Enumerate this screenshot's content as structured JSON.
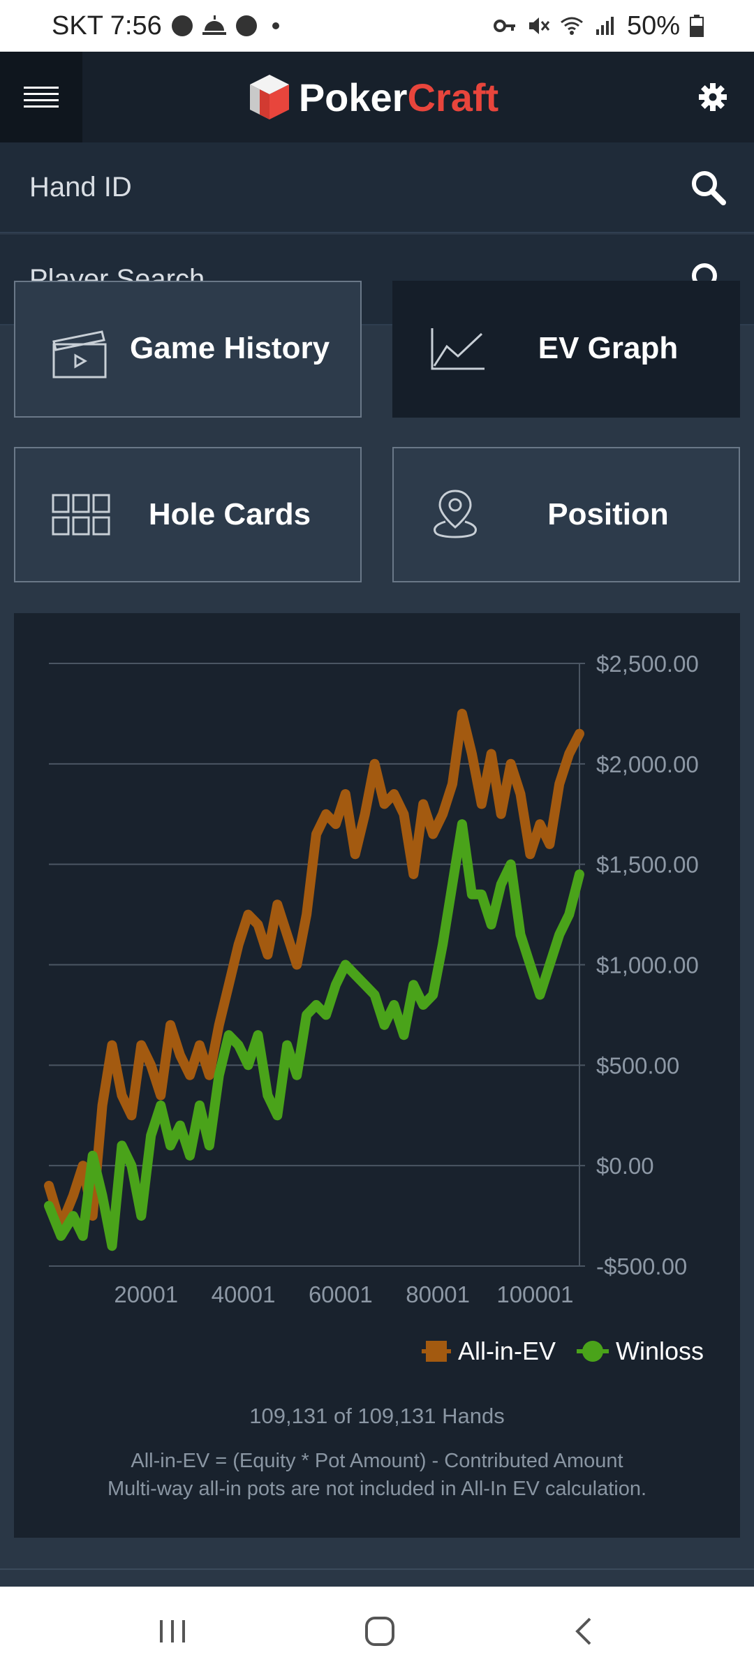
{
  "status_bar": {
    "carrier_time": "SKT 7:56",
    "battery": "50%",
    "icons": [
      "basketball-icon",
      "sunrise-icon",
      "basketball-icon",
      "dot-icon",
      "key-icon",
      "mute-icon",
      "wifi-icon",
      "signal-icon",
      "battery-icon"
    ]
  },
  "header": {
    "logo_poker": "Poker",
    "logo_craft": "Craft",
    "menu_icon": "hamburger-icon",
    "settings_icon": "gear-icon"
  },
  "search": {
    "hand_id_label": "Hand ID",
    "player_search_label": "Player Search"
  },
  "tiles": [
    {
      "label": "Game History",
      "icon": "clapperboard-icon",
      "active": false
    },
    {
      "label": "EV Graph",
      "icon": "line-graph-icon",
      "active": true
    },
    {
      "label": "Hole Cards",
      "icon": "grid-icon",
      "active": false
    },
    {
      "label": "Position",
      "icon": "location-pin-icon",
      "active": false
    }
  ],
  "colors": {
    "all_in_ev": "#a35a10",
    "winloss": "#4aa31a",
    "accent_red": "#e8453c"
  },
  "chart_data": {
    "type": "line",
    "x_ticks": [
      20001,
      40001,
      60001,
      80001,
      100001
    ],
    "x_tick_labels": [
      "20001",
      "40001",
      "60001",
      "80001",
      "100001"
    ],
    "y_ticks": [
      -500,
      0,
      500,
      1000,
      1500,
      2000,
      2500
    ],
    "y_tick_labels": [
      "-$500.00",
      "$0.00",
      "$500.00",
      "$1,000.00",
      "$1,500.00",
      "$2,000.00",
      "$2,500.00"
    ],
    "xlim": [
      1,
      109131
    ],
    "ylim": [
      -500,
      2500
    ],
    "grid": true,
    "legend_position": "bottom-right",
    "series": [
      {
        "name": "All-in-EV",
        "x": [
          1,
          2500,
          5000,
          7000,
          9000,
          11000,
          13000,
          15000,
          17000,
          19000,
          21000,
          23000,
          25000,
          27000,
          29000,
          31000,
          33000,
          35000,
          37000,
          39000,
          41000,
          43000,
          45000,
          47000,
          49000,
          51000,
          53000,
          55000,
          57000,
          59000,
          61000,
          63000,
          65000,
          67000,
          69000,
          71000,
          73000,
          75000,
          77000,
          79000,
          81000,
          83000,
          85000,
          87000,
          89000,
          91000,
          93000,
          95000,
          97000,
          99000,
          101000,
          103000,
          105000,
          107000,
          109131
        ],
        "y": [
          -100,
          -300,
          -150,
          0,
          -250,
          300,
          600,
          350,
          250,
          600,
          500,
          350,
          700,
          550,
          450,
          600,
          450,
          700,
          900,
          1100,
          1250,
          1200,
          1050,
          1300,
          1150,
          1000,
          1250,
          1650,
          1750,
          1700,
          1850,
          1550,
          1750,
          2000,
          1800,
          1850,
          1750,
          1450,
          1800,
          1650,
          1750,
          1900,
          2250,
          2050,
          1800,
          2050,
          1750,
          2000,
          1850,
          1550,
          1700,
          1600,
          1900,
          2050,
          2150
        ]
      },
      {
        "name": "Winloss",
        "x": [
          1,
          2500,
          5000,
          7000,
          9000,
          11000,
          13000,
          15000,
          17000,
          19000,
          21000,
          23000,
          25000,
          27000,
          29000,
          31000,
          33000,
          35000,
          37000,
          39000,
          41000,
          43000,
          45000,
          47000,
          49000,
          51000,
          53000,
          55000,
          57000,
          59000,
          61000,
          63000,
          65000,
          67000,
          69000,
          71000,
          73000,
          75000,
          77000,
          79000,
          81000,
          83000,
          85000,
          87000,
          89000,
          91000,
          93000,
          95000,
          97000,
          99000,
          101000,
          103000,
          105000,
          107000,
          109131
        ],
        "y": [
          -200,
          -350,
          -250,
          -350,
          50,
          -150,
          -400,
          100,
          0,
          -250,
          150,
          300,
          100,
          200,
          50,
          300,
          100,
          450,
          650,
          600,
          500,
          650,
          350,
          250,
          600,
          450,
          750,
          800,
          750,
          900,
          1000,
          950,
          900,
          850,
          700,
          800,
          650,
          900,
          800,
          850,
          1100,
          1400,
          1700,
          1350,
          1350,
          1200,
          1400,
          1500,
          1150,
          1000,
          850,
          1000,
          1150,
          1250,
          1450
        ]
      }
    ]
  },
  "stats": {
    "hands_count": "109,131 of 109,131 Hands",
    "footnote_line1": "All-in-EV = (Equity * Pot Amount) - Contributed Amount",
    "footnote_line2": "Multi-way all-in pots are not included in All-In EV calculation."
  },
  "nav": {
    "recents_icon": "recents-icon",
    "home_icon": "home-icon",
    "back_icon": "back-icon"
  }
}
